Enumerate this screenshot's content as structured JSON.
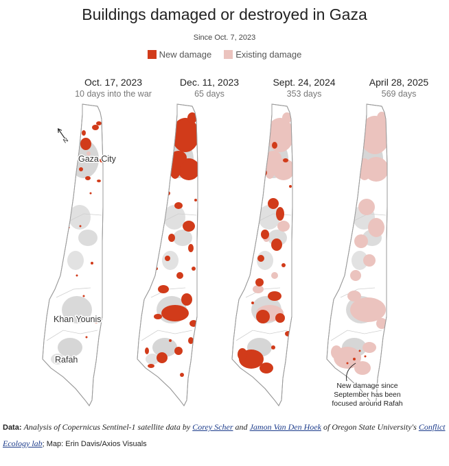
{
  "title": "Buildings damaged or destroyed in Gaza",
  "subtitle": "Since Oct. 7, 2023",
  "legend": [
    {
      "label": "New damage",
      "color": "#d13b1a"
    },
    {
      "label": "Existing damage",
      "color": "#ebc3be"
    }
  ],
  "panels": [
    {
      "date": "Oct. 17, 2023",
      "days": "10 days into the war"
    },
    {
      "date": "Dec. 11, 2023",
      "days": "65 days"
    },
    {
      "date": "Sept. 24, 2024",
      "days": "353 days"
    },
    {
      "date": "April 28, 2025",
      "days": "569 days"
    }
  ],
  "places": {
    "gaza_city": "Gaza City",
    "khan_younis": "Khan Younis",
    "rafah": "Rafah"
  },
  "north_label": "N",
  "annotation": [
    "New damage since",
    "September has been",
    "focused around Rafah"
  ],
  "footer": {
    "data_label": "Data:",
    "data_text_1": "Analysis of Copernicus Sentinel-1 satellite data by",
    "author_1": "Corey Scher",
    "and_text": "and",
    "author_2": "Jamon Van Den Hoek",
    "data_text_2": "of Oregon State University's",
    "lab_1": "Conflict",
    "lab_2": "Ecology lab",
    "map_credit": "; Map: Erin Davis/Axios Visuals"
  },
  "colors": {
    "new": "#d13b1a",
    "existing": "#ebc3be",
    "outline": "#9a9a9a",
    "buildings": "#d8d8d8"
  },
  "map": {
    "north_arrow": "north-arrow-icon",
    "damage_extent": [
      "low",
      "high",
      "high",
      "very high"
    ]
  }
}
